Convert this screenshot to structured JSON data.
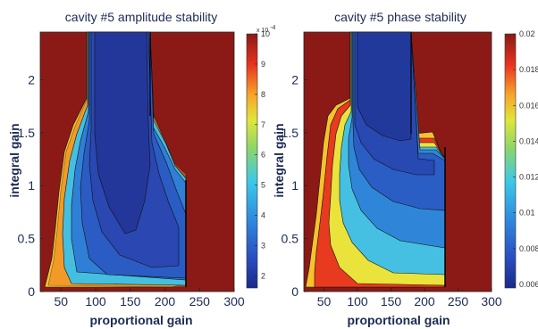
{
  "chart_data": [
    {
      "type": "heatmap",
      "subtype": "contour",
      "title": "cavity #5 amplitude stability",
      "xlabel": "proportional gain",
      "ylabel": "integral gain",
      "xlim": [
        20,
        300
      ],
      "ylim": [
        0,
        2.45
      ],
      "xticks": [
        "50",
        "100",
        "150",
        "200",
        "250",
        "300"
      ],
      "yticks": [
        "0",
        "0.5",
        "1",
        "1.5",
        "2"
      ],
      "colorbar": {
        "range": [
          1.6,
          10
        ],
        "ticks": [
          "2",
          "3",
          "4",
          "5",
          "6",
          "7",
          "8",
          "9",
          "10"
        ],
        "exponent": "x 10",
        "exponent_power": "-4"
      },
      "unstable_region": "saturated above colorbar maximum",
      "stable_region": {
        "x_range": [
          75,
          208
        ],
        "minimum": {
          "x": 140,
          "y": 0.55,
          "value": 1.6
        }
      }
    },
    {
      "type": "heatmap",
      "subtype": "contour",
      "title": "cavity #5 phase stability",
      "xlabel": "proportional gain",
      "ylabel": "integral gain",
      "xlim": [
        20,
        300
      ],
      "ylim": [
        0,
        2.45
      ],
      "xticks": [
        "50",
        "100",
        "150",
        "200",
        "250",
        "300"
      ],
      "yticks": [
        "0",
        "0.5",
        "1",
        "1.5",
        "2"
      ],
      "colorbar": {
        "range": [
          0.0058,
          0.02
        ],
        "ticks": [
          "0.006",
          "0.008",
          "0.01",
          "0.012",
          "0.014",
          "0.016",
          "0.018",
          "0.02"
        ]
      },
      "unstable_region": "saturated above colorbar maximum",
      "stable_region": {
        "x_range": [
          75,
          208
        ],
        "minimum": {
          "x": 130,
          "y": 2.0,
          "value": 0.0058
        }
      }
    }
  ]
}
